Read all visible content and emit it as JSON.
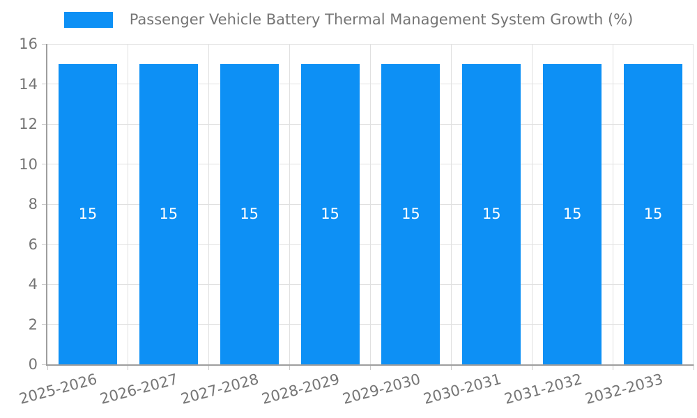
{
  "chart_data": {
    "type": "bar",
    "title": "Passenger Vehicle Battery Thermal Management System Growth (%)",
    "categories": [
      "2025-2026",
      "2026-2027",
      "2027-2028",
      "2028-2029",
      "2029-2030",
      "2030-2031",
      "2031-2032",
      "2032-2033"
    ],
    "values": [
      15,
      15,
      15,
      15,
      15,
      15,
      15,
      15
    ],
    "bar_value_labels": [
      "15",
      "15",
      "15",
      "15",
      "15",
      "15",
      "15",
      "15"
    ],
    "xlabel": "",
    "ylabel": "",
    "ylim": [
      0,
      16
    ],
    "ytick_step": 2,
    "ytick_labels": [
      "0",
      "2",
      "4",
      "6",
      "8",
      "10",
      "12",
      "14",
      "16"
    ],
    "grid": "on",
    "legend_position": "top-center",
    "colors": {
      "bar_fill": "#0d90f5",
      "bar_value_text": "#ffffff",
      "axis_text": "#757575",
      "legend_text": "#757575",
      "grid_line": "#e0e0e0",
      "axis_line": "#9e9e9e",
      "tick_mark": "#c9c9c9",
      "background": "#ffffff"
    }
  }
}
